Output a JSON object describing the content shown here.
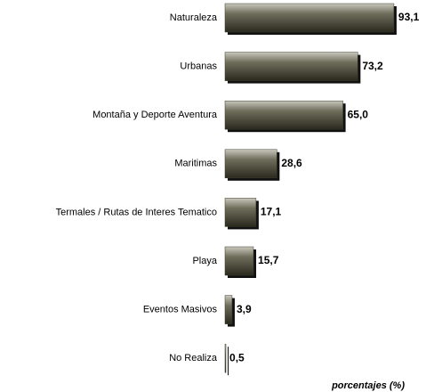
{
  "chart_data": {
    "type": "bar",
    "orientation": "horizontal",
    "categories": [
      "Naturaleza",
      "Urbanas",
      "Montaña y Deporte Aventura",
      "Maritimas",
      "Termales / Rutas de Interes Tematico",
      "Playa",
      "Eventos Masivos",
      "No Realiza"
    ],
    "values": [
      93.1,
      73.2,
      65.0,
      28.6,
      17.1,
      15.7,
      3.9,
      0.5
    ],
    "value_labels": [
      "93,1",
      "73,2",
      "65,0",
      "28,6",
      "17,1",
      "15,7",
      "3,9",
      "0,5"
    ],
    "color": "#3d3c2c",
    "x_label": "porcentajes (%)"
  }
}
